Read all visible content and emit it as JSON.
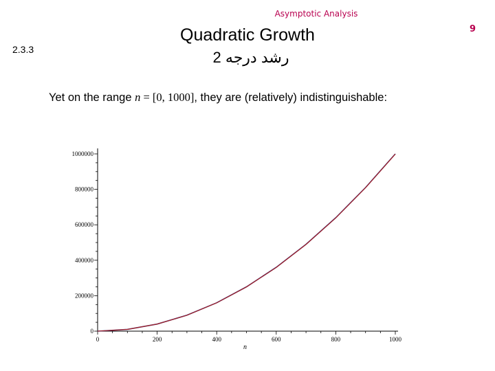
{
  "header": {
    "title": "Asymptotic Analysis",
    "page_number": "9"
  },
  "section": {
    "number": "2.3.3"
  },
  "slide": {
    "title": "Quadratic Growth",
    "subtitle": "رشد درجه 2",
    "body": {
      "prefix": "Yet on the range ",
      "variable": "n",
      "equals": " = [0, 1000]",
      "suffix": ", they are (relatively) indistinguishable:"
    }
  },
  "colors": {
    "accent": "#b8004f",
    "series_a": "#2c2c7a",
    "series_b": "#b02020"
  },
  "chart_data": {
    "type": "line",
    "title": "",
    "xlabel": "n",
    "ylabel": "",
    "xlim": [
      0,
      1000
    ],
    "ylim": [
      0,
      1000000
    ],
    "x_ticks": [
      0,
      200,
      400,
      600,
      800,
      1000
    ],
    "x_tick_labels": [
      "0",
      "200",
      "400",
      "600",
      "800",
      "1000"
    ],
    "y_ticks": [
      0,
      200000,
      400000,
      600000,
      800000,
      1000000
    ],
    "y_tick_labels": [
      "0",
      "200000",
      "400000",
      "600000",
      "800000",
      "1000000"
    ],
    "grid": false,
    "legend": "none",
    "x": [
      0,
      100,
      200,
      300,
      400,
      500,
      600,
      700,
      800,
      900,
      1000
    ],
    "series": [
      {
        "values": [
          0,
          10000,
          40000,
          90000,
          160000,
          250000,
          360000,
          490000,
          640000,
          810000,
          1000000
        ]
      },
      {
        "values": [
          0,
          9900,
          39800,
          89700,
          159600,
          249500,
          359400,
          489300,
          639200,
          809100,
          999000
        ]
      }
    ]
  }
}
